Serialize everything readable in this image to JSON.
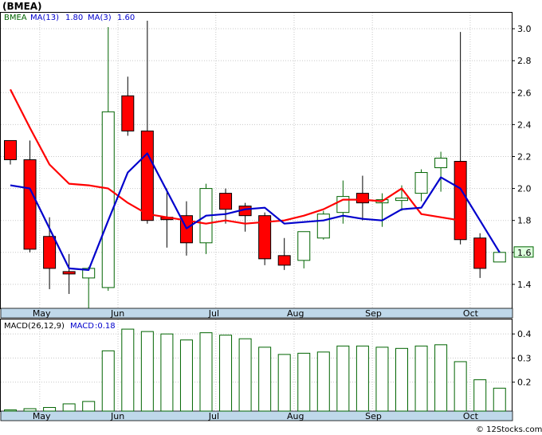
{
  "title": "(BMEA)",
  "copyright": "© 12Stocks.com",
  "chart_data": [
    {
      "type": "candlestick",
      "name": "price-chart",
      "legend": {
        "ticker": "BMEA",
        "ma13_label": "MA(13)",
        "ma13_value": "1.80",
        "ma3_label": "MA(3)",
        "ma3_value": "1.60"
      },
      "ylim": [
        1.25,
        3.1
      ],
      "yticks": [
        "3.0",
        "2.8",
        "2.6",
        "2.4",
        "2.2",
        "2.0",
        "1.8",
        "1.6",
        "1.4"
      ],
      "last_price_label": "1.6",
      "months": [
        "May",
        "Jun",
        "Jul",
        "Aug",
        "Sep",
        "Oct"
      ],
      "month_positions": [
        1.5,
        5.5,
        10.5,
        14.5,
        18.5,
        23.5
      ],
      "candles": [
        {
          "open": 2.3,
          "high": 2.3,
          "low": 2.15,
          "close": 2.18
        },
        {
          "open": 2.18,
          "high": 2.3,
          "low": 1.6,
          "close": 1.62
        },
        {
          "open": 1.7,
          "high": 1.82,
          "low": 1.37,
          "close": 1.5
        },
        {
          "open": 1.48,
          "high": 1.59,
          "low": 1.34,
          "close": 1.47
        },
        {
          "open": 1.44,
          "high": 1.51,
          "low": 1.25,
          "close": 1.5
        },
        {
          "open": 1.38,
          "high": 3.01,
          "low": 1.36,
          "close": 2.48
        },
        {
          "open": 2.58,
          "high": 2.7,
          "low": 2.33,
          "close": 2.36
        },
        {
          "open": 2.36,
          "high": 3.05,
          "low": 1.78,
          "close": 1.8
        },
        {
          "open": 1.82,
          "high": 2.0,
          "low": 1.63,
          "close": 1.81
        },
        {
          "open": 1.83,
          "high": 1.92,
          "low": 1.58,
          "close": 1.66
        },
        {
          "open": 1.66,
          "high": 2.03,
          "low": 1.59,
          "close": 2.0
        },
        {
          "open": 1.97,
          "high": 2.0,
          "low": 1.78,
          "close": 1.87
        },
        {
          "open": 1.89,
          "high": 1.91,
          "low": 1.73,
          "close": 1.83
        },
        {
          "open": 1.83,
          "high": 1.85,
          "low": 1.52,
          "close": 1.56
        },
        {
          "open": 1.58,
          "high": 1.69,
          "low": 1.49,
          "close": 1.52
        },
        {
          "open": 1.55,
          "high": 1.73,
          "low": 1.5,
          "close": 1.73
        },
        {
          "open": 1.69,
          "high": 1.86,
          "low": 1.68,
          "close": 1.84
        },
        {
          "open": 1.85,
          "high": 2.05,
          "low": 1.78,
          "close": 1.95
        },
        {
          "open": 1.97,
          "high": 2.08,
          "low": 1.8,
          "close": 1.91
        },
        {
          "open": 1.91,
          "high": 1.97,
          "low": 1.76,
          "close": 1.93
        },
        {
          "open": 1.93,
          "high": 2.02,
          "low": 1.86,
          "close": 1.94
        },
        {
          "open": 1.97,
          "high": 2.12,
          "low": 1.92,
          "close": 2.1
        },
        {
          "open": 2.13,
          "high": 2.23,
          "low": 1.98,
          "close": 2.19
        },
        {
          "open": 2.17,
          "high": 2.98,
          "low": 1.65,
          "close": 1.68
        },
        {
          "open": 1.69,
          "high": 1.72,
          "low": 1.44,
          "close": 1.5
        },
        {
          "open": 1.54,
          "high": 1.61,
          "low": 1.54,
          "close": 1.6
        }
      ],
      "ma13": [
        [
          0,
          2.62
        ],
        [
          1,
          2.38
        ],
        [
          2,
          2.15
        ],
        [
          3,
          2.03
        ],
        [
          4,
          2.02
        ],
        [
          5,
          2.0
        ],
        [
          6,
          1.91
        ],
        [
          7,
          1.84
        ],
        [
          8,
          1.82
        ],
        [
          9,
          1.8
        ],
        [
          10,
          1.78
        ],
        [
          11,
          1.8
        ],
        [
          12,
          1.78
        ],
        [
          13,
          1.79
        ],
        [
          14,
          1.8
        ],
        [
          15,
          1.83
        ],
        [
          16,
          1.87
        ],
        [
          17,
          1.93
        ],
        [
          18,
          1.93
        ],
        [
          19,
          1.92
        ],
        [
          20,
          2.0
        ],
        [
          21,
          1.84
        ],
        [
          22,
          1.82
        ],
        [
          23,
          1.8
        ]
      ],
      "ma3": [
        [
          0,
          2.02
        ],
        [
          1,
          2.0
        ],
        [
          3,
          1.5
        ],
        [
          4,
          1.49
        ],
        [
          5,
          1.8
        ],
        [
          6,
          2.1
        ],
        [
          7,
          2.22
        ],
        [
          9,
          1.75
        ],
        [
          10,
          1.83
        ],
        [
          11,
          1.84
        ],
        [
          12,
          1.87
        ],
        [
          13,
          1.88
        ],
        [
          14,
          1.78
        ],
        [
          15,
          1.79
        ],
        [
          16,
          1.8
        ],
        [
          17,
          1.83
        ],
        [
          18,
          1.81
        ],
        [
          19,
          1.8
        ],
        [
          20,
          1.87
        ],
        [
          21,
          1.88
        ],
        [
          22,
          2.07
        ],
        [
          23,
          2.0
        ],
        [
          24,
          1.8
        ],
        [
          25,
          1.6
        ]
      ]
    },
    {
      "type": "bar",
      "name": "macd-chart",
      "legend": {
        "label": "MACD(26,12,9)",
        "value_label": "MACD",
        "value": "0.18"
      },
      "ylim": [
        0.08,
        0.46
      ],
      "yticks": [
        "0.4",
        "0.3",
        "0.2"
      ],
      "months": [
        "May",
        "Jun",
        "Jul",
        "Aug",
        "Sep",
        "Oct"
      ],
      "values": [
        0.085,
        0.09,
        0.095,
        0.11,
        0.12,
        0.33,
        0.42,
        0.41,
        0.4,
        0.375,
        0.405,
        0.395,
        0.38,
        0.345,
        0.315,
        0.32,
        0.325,
        0.35,
        0.35,
        0.345,
        0.34,
        0.35,
        0.355,
        0.285,
        0.21,
        0.175
      ]
    }
  ],
  "colors": {
    "up": "#ffffff",
    "up_border": "#006400",
    "down": "#ff0000",
    "down_border": "#000000",
    "ma13": "#ff0000",
    "ma3": "#0000cc",
    "macd_bar": "#006400",
    "axis_band": "#bfd8ea",
    "label_bg": "#dfffdf",
    "ticker_text": "#006400",
    "ma3_text": "#0000cc"
  }
}
